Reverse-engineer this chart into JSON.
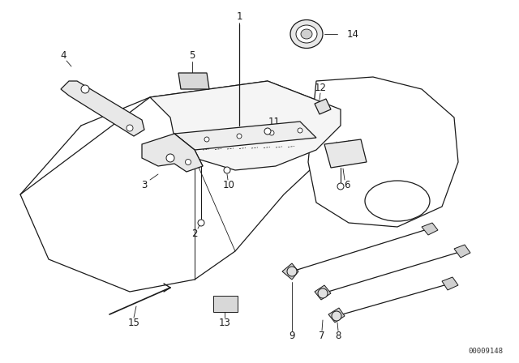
{
  "background_color": "#ffffff",
  "diagram_id": "00009148",
  "line_color": "#1a1a1a",
  "label_fontsize": 8.5,
  "label_bold": false
}
